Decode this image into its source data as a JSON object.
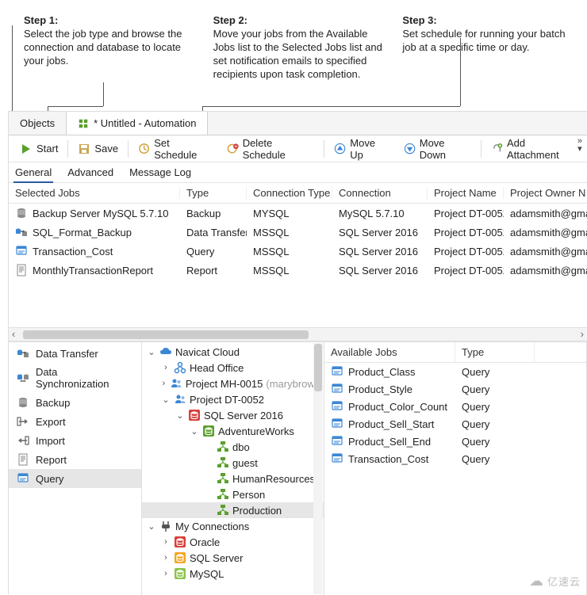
{
  "annotations": [
    {
      "title": "Step 1:",
      "text": "Select the job type and browse the connection and database to locate your jobs."
    },
    {
      "title": "Step 2:",
      "text": "Move your jobs from the Available Jobs list to the Selected Jobs list and set notification emails to specified recipients upon task completion."
    },
    {
      "title": "Step 3:",
      "text": "Set schedule for running your batch job at a specific time or day."
    }
  ],
  "tabs": {
    "objects": "Objects",
    "automation": "* Untitled - Automation"
  },
  "toolbar": {
    "start": "Start",
    "save": "Save",
    "set_schedule": "Set Schedule",
    "delete_schedule": "Delete Schedule",
    "move_up": "Move Up",
    "move_down": "Move Down",
    "add_attachment": "Add Attachment"
  },
  "subtabs": {
    "general": "General",
    "advanced": "Advanced",
    "message_log": "Message Log"
  },
  "selected_jobs": {
    "headers": [
      "Selected Jobs",
      "Type",
      "Connection Type",
      "Connection",
      "Project Name",
      "Project Owner N"
    ],
    "rows": [
      {
        "name": "Backup Server MySQL 5.7.10",
        "type": "Backup",
        "conn_type": "MYSQL",
        "conn": "MySQL 5.7.10",
        "project": "Project DT-0052",
        "owner": "adamsmith@gma",
        "icon": "backup"
      },
      {
        "name": "SQL_Format_Backup",
        "type": "Data Transfer",
        "conn_type": "MSSQL",
        "conn": "SQL Server 2016",
        "project": "Project DT-0052",
        "owner": "adamsmith@gma",
        "icon": "transfer"
      },
      {
        "name": "Transaction_Cost",
        "type": "Query",
        "conn_type": "MSSQL",
        "conn": "SQL Server 2016",
        "project": "Project DT-0052",
        "owner": "adamsmith@gma",
        "icon": "query"
      },
      {
        "name": "MonthlyTransactionReport",
        "type": "Report",
        "conn_type": "MSSQL",
        "conn": "SQL Server 2016",
        "project": "Project DT-0052",
        "owner": "adamsmith@gma",
        "icon": "report"
      }
    ]
  },
  "actions": [
    {
      "label": "Data Transfer",
      "icon": "transfer"
    },
    {
      "label": "Data Synchronization",
      "icon": "sync"
    },
    {
      "label": "Backup",
      "icon": "backup"
    },
    {
      "label": "Export",
      "icon": "export"
    },
    {
      "label": "Import",
      "icon": "import"
    },
    {
      "label": "Report",
      "icon": "report"
    },
    {
      "label": "Query",
      "icon": "query",
      "selected": true
    }
  ],
  "tree": [
    {
      "depth": 0,
      "exp": "v",
      "icon": "cloud",
      "label": "Navicat Cloud"
    },
    {
      "depth": 1,
      "exp": ">",
      "icon": "org",
      "label": "Head Office"
    },
    {
      "depth": 1,
      "exp": ">",
      "icon": "org-people",
      "label": "Project MH-0015",
      "suffix": "(marybrown"
    },
    {
      "depth": 1,
      "exp": "v",
      "icon": "org-people",
      "label": "Project DT-0052"
    },
    {
      "depth": 2,
      "exp": "v",
      "icon": "db-red",
      "label": "SQL Server 2016"
    },
    {
      "depth": 3,
      "exp": "v",
      "icon": "db-green",
      "label": "AdventureWorks"
    },
    {
      "depth": 4,
      "exp": "",
      "icon": "schema",
      "label": "dbo"
    },
    {
      "depth": 4,
      "exp": "",
      "icon": "schema",
      "label": "guest"
    },
    {
      "depth": 4,
      "exp": "",
      "icon": "schema",
      "label": "HumanResources"
    },
    {
      "depth": 4,
      "exp": "",
      "icon": "schema",
      "label": "Person"
    },
    {
      "depth": 4,
      "exp": "",
      "icon": "schema",
      "label": "Production",
      "selected": true
    },
    {
      "depth": 0,
      "exp": "v",
      "icon": "plug",
      "label": "My Connections"
    },
    {
      "depth": 1,
      "exp": ">",
      "icon": "db-red",
      "label": "Oracle"
    },
    {
      "depth": 1,
      "exp": ">",
      "icon": "db-orange",
      "label": "SQL Server"
    },
    {
      "depth": 1,
      "exp": ">",
      "icon": "db-lime",
      "label": "MySQL"
    }
  ],
  "available_jobs": {
    "headers": [
      "Available Jobs",
      "Type"
    ],
    "rows": [
      {
        "name": "Product_Class",
        "type": "Query"
      },
      {
        "name": "Product_Style",
        "type": "Query"
      },
      {
        "name": "Product_Color_Count",
        "type": "Query"
      },
      {
        "name": "Product_Sell_Start",
        "type": "Query"
      },
      {
        "name": "Product_Sell_End",
        "type": "Query"
      },
      {
        "name": "Transaction_Cost",
        "type": "Query"
      }
    ]
  },
  "watermark": "亿速云",
  "colors": {
    "green": "#5aa02c",
    "blue": "#3c87d4",
    "red": "#d6403a",
    "orange": "#f5a623",
    "grid": "#e5e5e5"
  }
}
